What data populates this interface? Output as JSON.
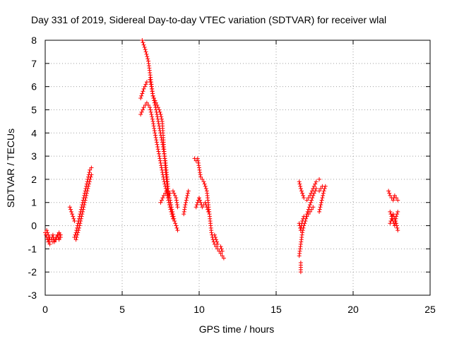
{
  "chart_data": {
    "type": "scatter",
    "title": "Day 331 of 2019, Sidereal Day-to-day VTEC variation (SDTVAR) for receiver wlal",
    "xlabel": "GPS time / hours",
    "ylabel": "SDTVAR / TECUs",
    "xlim": [
      0,
      25
    ],
    "ylim": [
      -3,
      8
    ],
    "xticks": [
      0,
      5,
      10,
      15,
      20,
      25
    ],
    "yticks": [
      -3,
      -2,
      -1,
      0,
      1,
      2,
      3,
      4,
      5,
      6,
      7,
      8
    ],
    "grid": true,
    "legend": "none",
    "marker": "+",
    "color": "#ff0000",
    "series": [
      {
        "name": "SDTVAR",
        "segments": [
          [
            [
              0.0,
              -0.3
            ],
            [
              0.1,
              -0.5
            ],
            [
              0.2,
              -0.7
            ],
            [
              0.3,
              -0.5
            ],
            [
              0.4,
              -0.6
            ],
            [
              0.5,
              -0.4
            ],
            [
              0.6,
              -0.7
            ],
            [
              0.7,
              -0.5
            ],
            [
              0.8,
              -0.4
            ],
            [
              0.9,
              -0.6
            ],
            [
              1.0,
              -0.4
            ]
          ],
          [
            [
              0.1,
              -0.2
            ],
            [
              0.2,
              -0.4
            ],
            [
              0.3,
              -0.8
            ],
            [
              0.5,
              -0.7
            ],
            [
              0.7,
              -0.6
            ],
            [
              0.9,
              -0.3
            ],
            [
              1.0,
              -0.5
            ]
          ],
          [
            [
              1.6,
              0.8
            ],
            [
              1.7,
              0.6
            ],
            [
              1.8,
              0.4
            ],
            [
              1.9,
              0.2
            ]
          ],
          [
            [
              1.9,
              -0.5
            ],
            [
              2.0,
              -0.3
            ],
            [
              2.1,
              0.0
            ],
            [
              2.2,
              0.3
            ],
            [
              2.3,
              0.6
            ],
            [
              2.4,
              0.9
            ],
            [
              2.5,
              1.2
            ],
            [
              2.6,
              1.5
            ],
            [
              2.7,
              1.8
            ],
            [
              2.8,
              2.1
            ],
            [
              2.9,
              2.4
            ],
            [
              3.0,
              2.5
            ]
          ],
          [
            [
              2.0,
              -0.6
            ],
            [
              2.2,
              -0.1
            ],
            [
              2.4,
              0.5
            ],
            [
              2.6,
              1.1
            ],
            [
              2.8,
              1.7
            ],
            [
              3.0,
              2.2
            ]
          ],
          [
            [
              6.3,
              8.0
            ],
            [
              6.5,
              7.6
            ],
            [
              6.7,
              7.1
            ],
            [
              6.8,
              6.6
            ],
            [
              6.9,
              6.1
            ],
            [
              7.0,
              5.6
            ],
            [
              7.2,
              5.0
            ],
            [
              7.4,
              4.3
            ],
            [
              7.6,
              3.6
            ],
            [
              7.8,
              2.8
            ],
            [
              7.9,
              2.2
            ],
            [
              8.0,
              1.5
            ],
            [
              8.2,
              0.8
            ],
            [
              8.4,
              0.2
            ],
            [
              8.6,
              -0.2
            ]
          ],
          [
            [
              6.2,
              5.5
            ],
            [
              6.4,
              5.9
            ],
            [
              6.6,
              6.2
            ],
            [
              6.8,
              6.3
            ],
            [
              6.9,
              6.0
            ],
            [
              7.0,
              5.6
            ],
            [
              7.2,
              5.3
            ],
            [
              7.4,
              5.0
            ],
            [
              7.5,
              4.8
            ],
            [
              7.6,
              4.5
            ],
            [
              7.7,
              3.5
            ],
            [
              7.8,
              2.5
            ],
            [
              7.9,
              1.8
            ],
            [
              8.0,
              1.2
            ]
          ],
          [
            [
              6.2,
              4.8
            ],
            [
              6.4,
              5.1
            ],
            [
              6.6,
              5.3
            ],
            [
              6.8,
              5.1
            ],
            [
              6.9,
              4.8
            ],
            [
              7.0,
              4.5
            ],
            [
              7.1,
              4.1
            ],
            [
              7.3,
              3.4
            ],
            [
              7.5,
              2.7
            ],
            [
              7.7,
              2.0
            ],
            [
              7.9,
              1.4
            ],
            [
              8.1,
              0.8
            ],
            [
              8.3,
              0.3
            ]
          ],
          [
            [
              7.5,
              1.0
            ],
            [
              7.7,
              1.3
            ],
            [
              7.9,
              1.5
            ],
            [
              8.1,
              1.4
            ],
            [
              8.3,
              1.5
            ],
            [
              8.5,
              1.2
            ],
            [
              8.6,
              0.8
            ]
          ],
          [
            [
              9.0,
              0.5
            ],
            [
              9.1,
              0.9
            ],
            [
              9.2,
              1.2
            ],
            [
              9.3,
              1.5
            ]
          ],
          [
            [
              9.7,
              2.9
            ],
            [
              9.8,
              2.8
            ],
            [
              9.9,
              2.9
            ],
            [
              10.0,
              2.5
            ],
            [
              10.1,
              2.1
            ],
            [
              10.2,
              2.0
            ],
            [
              10.3,
              1.9
            ],
            [
              10.4,
              1.7
            ],
            [
              10.5,
              1.5
            ],
            [
              10.6,
              0.9
            ],
            [
              10.7,
              0.3
            ],
            [
              10.8,
              -0.3
            ],
            [
              10.9,
              -0.6
            ],
            [
              11.0,
              -0.8
            ],
            [
              11.2,
              -1.0
            ],
            [
              11.4,
              -1.2
            ],
            [
              11.6,
              -1.4
            ]
          ],
          [
            [
              9.8,
              0.8
            ],
            [
              10.0,
              1.2
            ],
            [
              10.2,
              0.8
            ],
            [
              10.4,
              1.0
            ],
            [
              10.6,
              0.6
            ]
          ],
          [
            [
              11.0,
              -0.4
            ],
            [
              11.2,
              -0.8
            ],
            [
              11.4,
              -0.9
            ],
            [
              11.5,
              -1.1
            ]
          ],
          [
            [
              16.5,
              1.9
            ],
            [
              16.6,
              1.6
            ],
            [
              16.7,
              1.4
            ],
            [
              16.8,
              1.2
            ],
            [
              17.0,
              1.1
            ],
            [
              17.2,
              1.3
            ],
            [
              17.4,
              1.6
            ],
            [
              17.6,
              1.9
            ],
            [
              17.8,
              2.0
            ]
          ],
          [
            [
              16.5,
              -1.3
            ],
            [
              16.6,
              -0.8
            ],
            [
              16.7,
              -0.3
            ],
            [
              16.8,
              0.0
            ],
            [
              16.9,
              0.2
            ],
            [
              17.0,
              0.5
            ],
            [
              17.2,
              0.9
            ],
            [
              17.4,
              1.3
            ],
            [
              17.6,
              1.6
            ],
            [
              17.8,
              1.5
            ],
            [
              18.0,
              1.7
            ]
          ],
          [
            [
              16.6,
              -2.0
            ],
            [
              16.6,
              -1.6
            ]
          ],
          [
            [
              16.5,
              0.1
            ],
            [
              16.6,
              -0.2
            ],
            [
              16.7,
              0.2
            ],
            [
              16.8,
              0.4
            ],
            [
              17.0,
              0.4
            ],
            [
              17.2,
              0.6
            ],
            [
              17.4,
              0.8
            ]
          ],
          [
            [
              17.8,
              0.6
            ],
            [
              17.9,
              0.9
            ],
            [
              18.0,
              1.2
            ],
            [
              18.1,
              1.5
            ],
            [
              18.2,
              1.7
            ]
          ],
          [
            [
              22.3,
              1.5
            ],
            [
              22.4,
              1.3
            ],
            [
              22.5,
              1.2
            ],
            [
              22.6,
              1.1
            ],
            [
              22.7,
              1.3
            ],
            [
              22.8,
              1.2
            ],
            [
              22.9,
              1.1
            ]
          ],
          [
            [
              22.4,
              0.1
            ],
            [
              22.5,
              0.3
            ],
            [
              22.6,
              0.5
            ],
            [
              22.7,
              0.3
            ],
            [
              22.8,
              0.1
            ],
            [
              22.9,
              -0.2
            ]
          ],
          [
            [
              22.4,
              0.6
            ],
            [
              22.5,
              0.4
            ],
            [
              22.6,
              0.2
            ],
            [
              22.7,
              0.0
            ],
            [
              22.8,
              0.4
            ],
            [
              22.9,
              0.6
            ]
          ]
        ]
      }
    ]
  }
}
